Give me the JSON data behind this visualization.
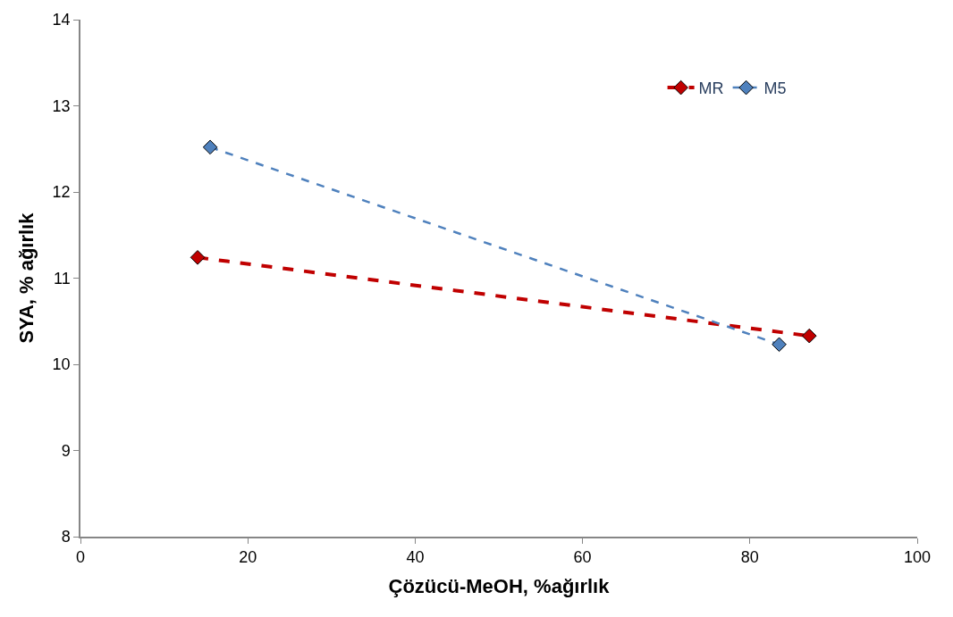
{
  "chart_data": {
    "type": "line",
    "xlabel": "Çözücü-MeOH, %ağırlık",
    "ylabel": "SYA, % ağırlık",
    "series": [
      {
        "name": "MR",
        "color": "#c00000",
        "x": [
          14.0,
          87.1
        ],
        "values": [
          11.24,
          10.33
        ]
      },
      {
        "name": "M5",
        "color": "#4f81bd",
        "x": [
          15.5,
          83.5
        ],
        "values": [
          12.52,
          10.23
        ]
      }
    ],
    "xlim": [
      0,
      100
    ],
    "xticks": [
      0,
      20,
      40,
      60,
      80,
      100
    ],
    "ylim": [
      8,
      14
    ],
    "yticks": [
      8,
      9,
      10,
      11,
      12,
      13,
      14
    ],
    "legend": "top right",
    "marker": "diamond",
    "line_style": "dashed"
  }
}
